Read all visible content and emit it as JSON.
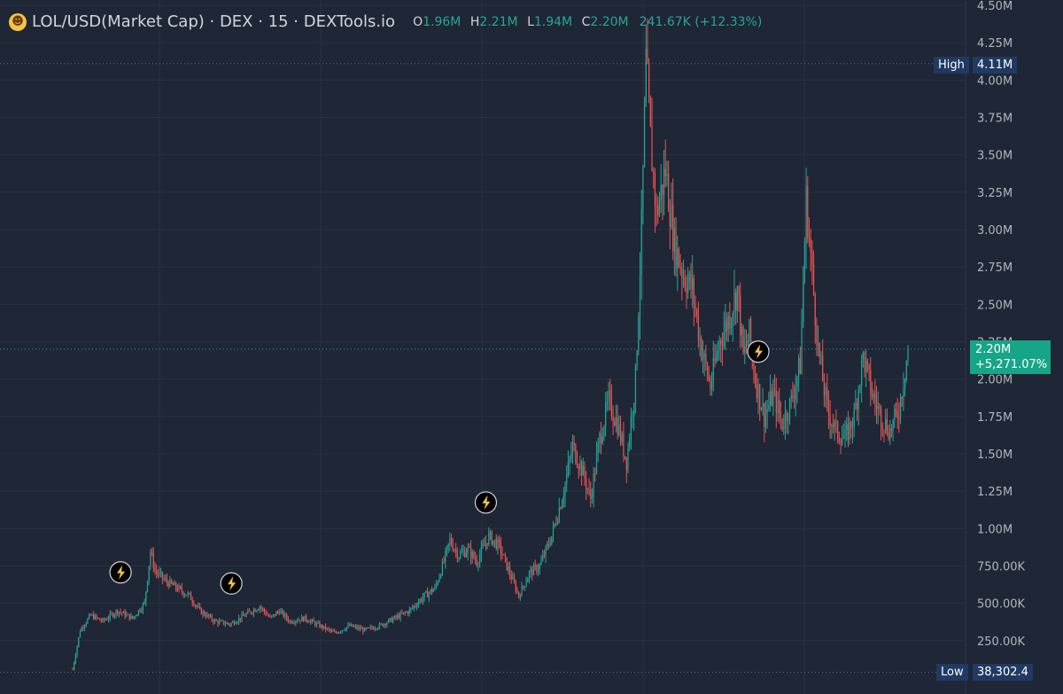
{
  "header": {
    "emoji_icon": "grinning-face-icon",
    "symbol": "LOL/USD(Market Cap) · DEX · 15 · DEXTools.io",
    "o_label": "O",
    "o_value": "1.96M",
    "h_label": "H",
    "h_value": "2.21M",
    "l_label": "L",
    "l_value": "1.94M",
    "c_label": "C",
    "c_value": "2.20M",
    "change": "241.67K (+12.33%)"
  },
  "y_axis": {
    "ticks": [
      "4.50M",
      "4.25M",
      "4.00M",
      "3.75M",
      "3.50M",
      "3.25M",
      "3.00M",
      "2.75M",
      "2.50M",
      "2.25M",
      "2.00M",
      "1.75M",
      "1.50M",
      "1.25M",
      "1.00M",
      "750.00K",
      "500.00K",
      "250.00K"
    ]
  },
  "markers": {
    "high_label": "High",
    "high_value": "4.11M",
    "low_label": "Low",
    "low_value": "38,302.4",
    "current_price": "2.20M",
    "current_change": "+5,271.07%"
  },
  "colors": {
    "up": "#26a69a",
    "down": "#ef5350",
    "background": "#1f2635",
    "grid": "#2a3242",
    "accent": "#17a589"
  },
  "chart_data": {
    "type": "candlestick",
    "title": "LOL/USD(Market Cap)",
    "ylim": [
      0,
      4500000
    ],
    "high": 4110000,
    "low": 38302.4,
    "last": 2200000,
    "close_path": [
      [
        0,
        0.06
      ],
      [
        5,
        0.32
      ],
      [
        12,
        0.42
      ],
      [
        20,
        0.38
      ],
      [
        30,
        0.45
      ],
      [
        40,
        0.4
      ],
      [
        48,
        0.5
      ],
      [
        52,
        0.85
      ],
      [
        55,
        0.72
      ],
      [
        62,
        0.65
      ],
      [
        70,
        0.6
      ],
      [
        78,
        0.55
      ],
      [
        85,
        0.45
      ],
      [
        95,
        0.38
      ],
      [
        105,
        0.36
      ],
      [
        115,
        0.42
      ],
      [
        125,
        0.48
      ],
      [
        132,
        0.4
      ],
      [
        138,
        0.45
      ],
      [
        145,
        0.38
      ],
      [
        155,
        0.4
      ],
      [
        165,
        0.35
      ],
      [
        175,
        0.3
      ],
      [
        185,
        0.35
      ],
      [
        195,
        0.32
      ],
      [
        205,
        0.35
      ],
      [
        215,
        0.4
      ],
      [
        225,
        0.45
      ],
      [
        235,
        0.55
      ],
      [
        242,
        0.6
      ],
      [
        248,
        0.78
      ],
      [
        252,
        0.92
      ],
      [
        258,
        0.82
      ],
      [
        264,
        0.86
      ],
      [
        270,
        0.78
      ],
      [
        278,
        0.95
      ],
      [
        285,
        0.88
      ],
      [
        292,
        0.7
      ],
      [
        298,
        0.55
      ],
      [
        305,
        0.7
      ],
      [
        312,
        0.75
      ],
      [
        320,
        0.95
      ],
      [
        328,
        1.25
      ],
      [
        334,
        1.55
      ],
      [
        340,
        1.4
      ],
      [
        346,
        1.2
      ],
      [
        352,
        1.6
      ],
      [
        358,
        1.85
      ],
      [
        364,
        1.7
      ],
      [
        370,
        1.45
      ],
      [
        376,
        2.0
      ],
      [
        380,
        3.0
      ],
      [
        383,
        4.11
      ],
      [
        386,
        3.6
      ],
      [
        390,
        3.1
      ],
      [
        396,
        3.4
      ],
      [
        402,
        2.9
      ],
      [
        408,
        2.7
      ],
      [
        414,
        2.6
      ],
      [
        420,
        2.2
      ],
      [
        426,
        1.95
      ],
      [
        432,
        2.25
      ],
      [
        438,
        2.4
      ],
      [
        444,
        2.6
      ],
      [
        448,
        2.15
      ],
      [
        452,
        2.3
      ],
      [
        456,
        2.0
      ],
      [
        462,
        1.75
      ],
      [
        468,
        1.9
      ],
      [
        474,
        1.7
      ],
      [
        480,
        1.85
      ],
      [
        486,
        2.1
      ],
      [
        490,
        3.2
      ],
      [
        494,
        2.7
      ],
      [
        498,
        2.2
      ],
      [
        504,
        1.8
      ],
      [
        510,
        1.65
      ],
      [
        516,
        1.6
      ],
      [
        522,
        1.75
      ],
      [
        528,
        2.15
      ],
      [
        534,
        1.9
      ],
      [
        540,
        1.75
      ],
      [
        546,
        1.65
      ],
      [
        552,
        1.8
      ],
      [
        558,
        2.2
      ]
    ],
    "events": [
      {
        "x": 32
      },
      {
        "x": 106
      },
      {
        "x": 276
      },
      {
        "x": 458
      }
    ]
  }
}
